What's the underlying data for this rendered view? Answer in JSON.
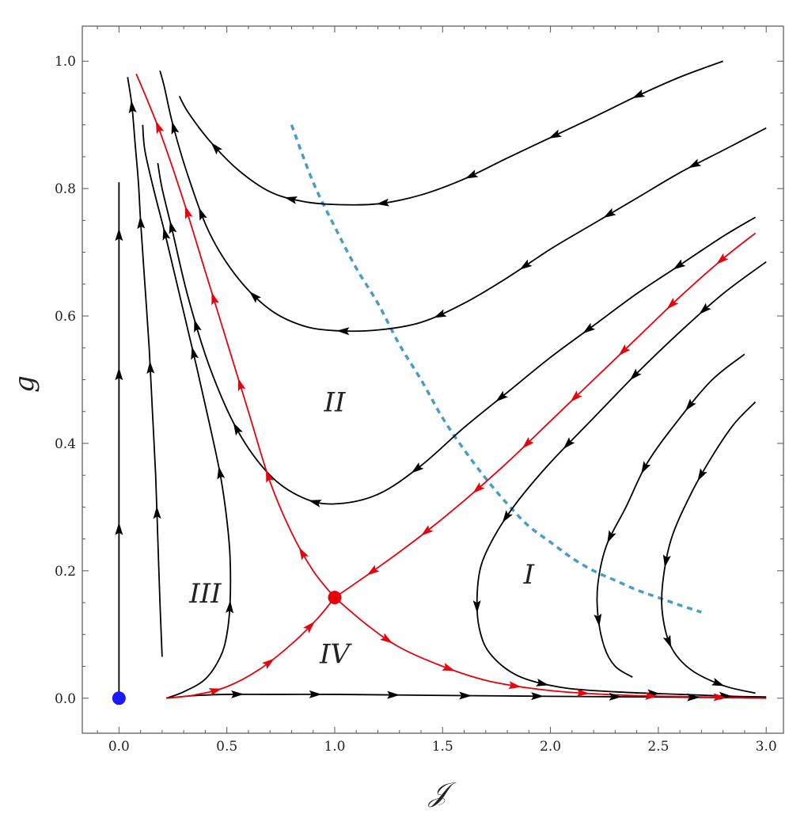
{
  "chart_data": {
    "type": "line",
    "title": "",
    "xlabel": "𝒥",
    "ylabel": "g",
    "xlim": [
      -0.17,
      3.08
    ],
    "ylim": [
      -0.055,
      1.055
    ],
    "xticks": [
      "0.0",
      "0.5",
      "1.0",
      "1.5",
      "2.0",
      "2.5",
      "3.0"
    ],
    "yticks": [
      "0.0",
      "0.2",
      "0.4",
      "0.6",
      "0.8",
      "1.0"
    ],
    "grid": false,
    "colors": {
      "flow": "#000000",
      "separatrix": "#e8000b",
      "dashed": "#4a9cc8",
      "origin_point": "#1a1aff",
      "saddle_point": "#e8000b"
    },
    "region_labels": [
      {
        "text": "I",
        "x": 1.9,
        "y": 0.18
      },
      {
        "text": "II",
        "x": 1.0,
        "y": 0.45
      },
      {
        "text": "III",
        "x": 0.4,
        "y": 0.15
      },
      {
        "text": "IV",
        "x": 1.0,
        "y": 0.055
      }
    ],
    "fixed_points": [
      {
        "name": "origin",
        "x": 0.0,
        "y": 0.0
      },
      {
        "name": "saddle",
        "x": 1.0,
        "y": 0.158
      }
    ],
    "series": [
      {
        "kind": "dashed",
        "points": [
          [
            0.8,
            0.9
          ],
          [
            0.9,
            0.81
          ],
          [
            1.0,
            0.74
          ],
          [
            1.1,
            0.675
          ],
          [
            1.2,
            0.62
          ],
          [
            1.3,
            0.555
          ],
          [
            1.4,
            0.5
          ],
          [
            1.5,
            0.44
          ],
          [
            1.6,
            0.39
          ],
          [
            1.7,
            0.345
          ],
          [
            1.8,
            0.305
          ],
          [
            1.9,
            0.27
          ],
          [
            2.0,
            0.245
          ],
          [
            2.1,
            0.22
          ],
          [
            2.2,
            0.2
          ],
          [
            2.3,
            0.185
          ],
          [
            2.4,
            0.17
          ],
          [
            2.5,
            0.158
          ],
          [
            2.6,
            0.146
          ],
          [
            2.7,
            0.135
          ]
        ]
      },
      {
        "kind": "flow",
        "points": [
          [
            0.0,
            0.0
          ],
          [
            0.0,
            0.25
          ],
          [
            0.0,
            0.5
          ],
          [
            0.0,
            0.74
          ],
          [
            0.0,
            0.81
          ]
        ],
        "arrows": [
          0.33,
          0.63,
          0.9
        ]
      },
      {
        "kind": "flow",
        "points": [
          [
            0.2,
            0.065
          ],
          [
            0.19,
            0.15
          ],
          [
            0.18,
            0.25
          ],
          [
            0.17,
            0.35
          ],
          [
            0.155,
            0.45
          ],
          [
            0.14,
            0.55
          ],
          [
            0.12,
            0.65
          ],
          [
            0.1,
            0.75
          ],
          [
            0.09,
            0.81
          ],
          [
            0.075,
            0.87
          ],
          [
            0.06,
            0.93
          ],
          [
            0.04,
            0.975
          ]
        ],
        "arrows": [
          0.25,
          0.5,
          0.75,
          0.95
        ]
      },
      {
        "kind": "flow",
        "points": [
          [
            0.22,
            0.0
          ],
          [
            0.3,
            0.01
          ],
          [
            0.4,
            0.03
          ],
          [
            0.47,
            0.065
          ],
          [
            0.5,
            0.1
          ],
          [
            0.515,
            0.15
          ],
          [
            0.515,
            0.22
          ],
          [
            0.5,
            0.28
          ],
          [
            0.47,
            0.35
          ],
          [
            0.42,
            0.43
          ],
          [
            0.36,
            0.52
          ],
          [
            0.29,
            0.62
          ],
          [
            0.22,
            0.72
          ],
          [
            0.16,
            0.8
          ],
          [
            0.12,
            0.86
          ],
          [
            0.11,
            0.9
          ]
        ],
        "arrows": [
          0.2,
          0.42,
          0.62,
          0.82
        ]
      },
      {
        "kind": "flow",
        "points": [
          [
            0.22,
            0.0
          ],
          [
            0.35,
            0.004
          ],
          [
            0.5,
            0.006
          ],
          [
            0.7,
            0.006
          ],
          [
            1.0,
            0.006
          ],
          [
            1.3,
            0.005
          ],
          [
            1.6,
            0.004
          ],
          [
            2.0,
            0.003
          ],
          [
            2.4,
            0.002
          ],
          [
            2.8,
            0.001
          ],
          [
            3.0,
            0.0
          ]
        ],
        "arrows": [
          0.12,
          0.25,
          0.38,
          0.5,
          0.62,
          0.75,
          0.88
        ]
      },
      {
        "kind": "flow",
        "points": [
          [
            2.8,
            1.0
          ],
          [
            2.6,
            0.975
          ],
          [
            2.4,
            0.945
          ],
          [
            2.2,
            0.912
          ],
          [
            2.0,
            0.88
          ],
          [
            1.8,
            0.848
          ],
          [
            1.6,
            0.815
          ],
          [
            1.4,
            0.79
          ],
          [
            1.2,
            0.776
          ],
          [
            1.0,
            0.775
          ],
          [
            0.85,
            0.78
          ],
          [
            0.7,
            0.795
          ],
          [
            0.55,
            0.83
          ],
          [
            0.42,
            0.875
          ],
          [
            0.32,
            0.92
          ],
          [
            0.28,
            0.945
          ]
        ],
        "arrows": [
          0.15,
          0.3,
          0.45,
          0.6,
          0.75,
          0.9
        ]
      },
      {
        "kind": "flow",
        "points": [
          [
            3.0,
            0.895
          ],
          [
            2.8,
            0.86
          ],
          [
            2.6,
            0.825
          ],
          [
            2.4,
            0.785
          ],
          [
            2.2,
            0.745
          ],
          [
            2.0,
            0.705
          ],
          [
            1.8,
            0.66
          ],
          [
            1.6,
            0.62
          ],
          [
            1.4,
            0.59
          ],
          [
            1.2,
            0.578
          ],
          [
            1.0,
            0.577
          ],
          [
            0.85,
            0.585
          ],
          [
            0.7,
            0.61
          ],
          [
            0.55,
            0.66
          ],
          [
            0.42,
            0.73
          ],
          [
            0.32,
            0.82
          ],
          [
            0.25,
            0.9
          ],
          [
            0.21,
            0.96
          ],
          [
            0.19,
            0.985
          ]
        ],
        "arrows": [
          0.1,
          0.22,
          0.34,
          0.46,
          0.58,
          0.7,
          0.82,
          0.93
        ]
      },
      {
        "kind": "flow",
        "points": [
          [
            2.95,
            0.755
          ],
          [
            2.8,
            0.725
          ],
          [
            2.6,
            0.68
          ],
          [
            2.4,
            0.635
          ],
          [
            2.2,
            0.585
          ],
          [
            2.0,
            0.535
          ],
          [
            1.8,
            0.48
          ],
          [
            1.6,
            0.425
          ],
          [
            1.4,
            0.365
          ],
          [
            1.2,
            0.32
          ],
          [
            1.0,
            0.305
          ],
          [
            0.85,
            0.315
          ],
          [
            0.7,
            0.35
          ],
          [
            0.55,
            0.42
          ],
          [
            0.42,
            0.52
          ],
          [
            0.32,
            0.63
          ],
          [
            0.25,
            0.73
          ],
          [
            0.2,
            0.8
          ],
          [
            0.18,
            0.84
          ]
        ],
        "arrows": [
          0.1,
          0.22,
          0.34,
          0.46,
          0.58,
          0.7,
          0.82,
          0.93
        ]
      },
      {
        "kind": "flow",
        "points": [
          [
            3.0,
            0.685
          ],
          [
            2.8,
            0.635
          ],
          [
            2.6,
            0.575
          ],
          [
            2.4,
            0.51
          ],
          [
            2.2,
            0.44
          ],
          [
            2.0,
            0.37
          ],
          [
            1.85,
            0.31
          ],
          [
            1.75,
            0.26
          ],
          [
            1.68,
            0.21
          ],
          [
            1.66,
            0.16
          ],
          [
            1.67,
            0.11
          ],
          [
            1.72,
            0.07
          ],
          [
            1.85,
            0.035
          ],
          [
            2.05,
            0.017
          ],
          [
            2.3,
            0.01
          ],
          [
            2.6,
            0.006
          ],
          [
            2.85,
            0.003
          ],
          [
            3.0,
            0.002
          ]
        ],
        "arrows": [
          0.1,
          0.22,
          0.34,
          0.46,
          0.58,
          0.72,
          0.86,
          0.95
        ]
      },
      {
        "kind": "flow",
        "points": [
          [
            2.9,
            0.54
          ],
          [
            2.75,
            0.5
          ],
          [
            2.6,
            0.44
          ],
          [
            2.45,
            0.37
          ],
          [
            2.35,
            0.3
          ],
          [
            2.26,
            0.24
          ],
          [
            2.22,
            0.18
          ],
          [
            2.22,
            0.13
          ],
          [
            2.25,
            0.08
          ],
          [
            2.3,
            0.05
          ],
          [
            2.38,
            0.033
          ]
        ],
        "arrows": [
          0.2,
          0.4,
          0.6,
          0.82
        ]
      },
      {
        "kind": "flow",
        "points": [
          [
            2.95,
            0.465
          ],
          [
            2.85,
            0.43
          ],
          [
            2.75,
            0.38
          ],
          [
            2.65,
            0.32
          ],
          [
            2.56,
            0.25
          ],
          [
            2.52,
            0.18
          ],
          [
            2.52,
            0.13
          ],
          [
            2.56,
            0.08
          ],
          [
            2.65,
            0.045
          ],
          [
            2.8,
            0.02
          ],
          [
            2.95,
            0.008
          ]
        ],
        "arrows": [
          0.25,
          0.5,
          0.72,
          0.9
        ]
      },
      {
        "kind": "separatrix",
        "points": [
          [
            0.22,
            0.0
          ],
          [
            0.35,
            0.005
          ],
          [
            0.5,
            0.018
          ],
          [
            0.65,
            0.045
          ],
          [
            0.8,
            0.085
          ],
          [
            0.92,
            0.125
          ],
          [
            1.0,
            0.158
          ]
        ],
        "arrows": [
          0.25,
          0.55,
          0.82
        ]
      },
      {
        "kind": "separatrix",
        "points": [
          [
            2.95,
            0.73
          ],
          [
            2.8,
            0.69
          ],
          [
            2.6,
            0.63
          ],
          [
            2.4,
            0.565
          ],
          [
            2.2,
            0.5
          ],
          [
            2.0,
            0.435
          ],
          [
            1.8,
            0.37
          ],
          [
            1.6,
            0.31
          ],
          [
            1.4,
            0.255
          ],
          [
            1.2,
            0.205
          ],
          [
            1.0,
            0.158
          ]
        ],
        "arrows": [
          0.08,
          0.2,
          0.32,
          0.44,
          0.56,
          0.68,
          0.8,
          0.92
        ]
      },
      {
        "kind": "separatrix",
        "points": [
          [
            1.0,
            0.158
          ],
          [
            0.9,
            0.2
          ],
          [
            0.8,
            0.26
          ],
          [
            0.7,
            0.34
          ],
          [
            0.6,
            0.45
          ],
          [
            0.5,
            0.56
          ],
          [
            0.4,
            0.67
          ],
          [
            0.3,
            0.78
          ],
          [
            0.2,
            0.88
          ],
          [
            0.13,
            0.94
          ],
          [
            0.08,
            0.98
          ]
        ],
        "arrows": [
          0.1,
          0.25,
          0.42,
          0.58,
          0.74,
          0.9
        ]
      },
      {
        "kind": "separatrix",
        "points": [
          [
            1.0,
            0.158
          ],
          [
            1.15,
            0.115
          ],
          [
            1.3,
            0.08
          ],
          [
            1.5,
            0.05
          ],
          [
            1.7,
            0.028
          ],
          [
            1.9,
            0.016
          ],
          [
            2.1,
            0.009
          ],
          [
            2.4,
            0.004
          ],
          [
            2.7,
            0.002
          ],
          [
            3.0,
            0.0
          ]
        ],
        "arrows": [
          0.15,
          0.3,
          0.45,
          0.6,
          0.75,
          0.9
        ]
      }
    ]
  }
}
